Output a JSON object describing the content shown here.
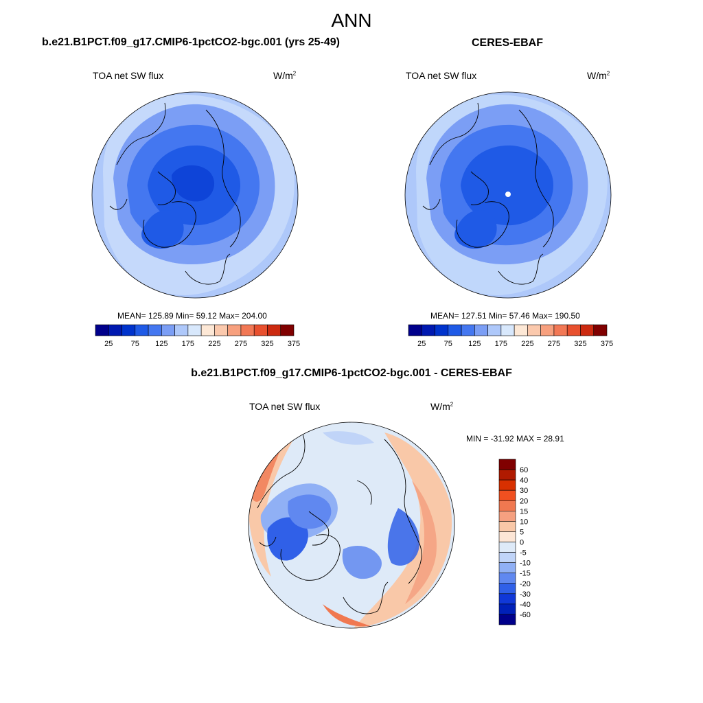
{
  "figure": {
    "title": "ANN",
    "variable": "TOA net SW flux",
    "units_base": "W/m",
    "units_exp": "2"
  },
  "panels": [
    {
      "title": "b.e21.B1PCT.f09_g17.CMIP6-1pctCO2-bgc.001 (yrs 25-49)",
      "stats": "MEAN= 125.89  Min=  59.12  Max= 204.00"
    },
    {
      "title": "CERES-EBAF",
      "stats": "MEAN= 127.51  Min=  57.46  Max= 190.50"
    },
    {
      "title": "b.e21.B1PCT.f09_g17.CMIP6-1pctCO2-bgc.001 - CERES-EBAF",
      "stats": "MIN = -31.92 MAX =  28.91"
    }
  ],
  "colorbar_abs": {
    "colors": [
      "#00008b",
      "#0019b0",
      "#0033cc",
      "#1f5ae6",
      "#4477f0",
      "#7b9ef5",
      "#aec8fa",
      "#d8e8fc",
      "#fde8d6",
      "#fbc9ad",
      "#f7a07e",
      "#f27855",
      "#e8502e",
      "#cc2a10",
      "#800000"
    ],
    "ticks": [
      "25",
      "75",
      "125",
      "175",
      "225",
      "275",
      "325",
      "375"
    ]
  },
  "colorbar_diff": {
    "colors": [
      "#800000",
      "#b01a00",
      "#d83000",
      "#f05020",
      "#f07850",
      "#f5a080",
      "#f9c8a8",
      "#fde6d6",
      "#deeaf8",
      "#c0d4f8",
      "#90b0f5",
      "#6088f0",
      "#3060e8",
      "#1038d8",
      "#0020b8",
      "#00008b"
    ],
    "ticks": [
      "60",
      "40",
      "30",
      "20",
      "15",
      "10",
      "5",
      "0",
      "-5",
      "-10",
      "-15",
      "-20",
      "-30",
      "-40",
      "-60"
    ]
  }
}
